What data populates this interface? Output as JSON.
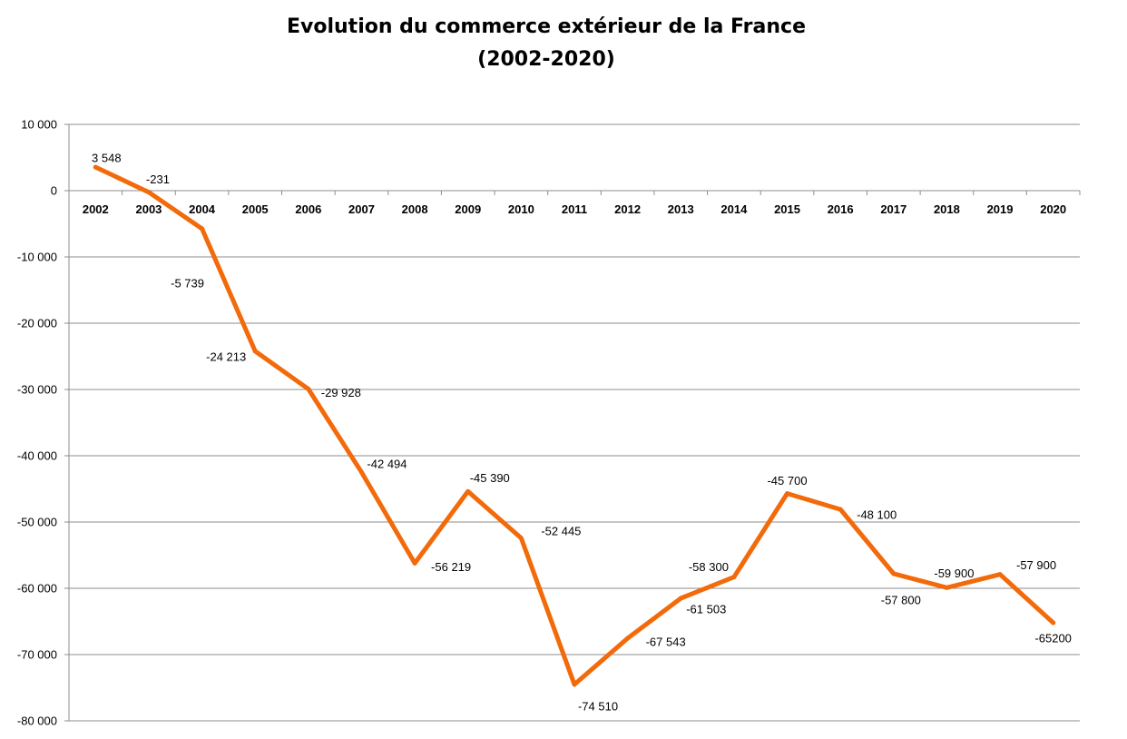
{
  "chart_data": {
    "type": "line",
    "title_line1": "Evolution du commerce extérieur de la France",
    "title_line2": "(2002-2020)",
    "xlabel": "",
    "ylabel": "",
    "categories": [
      "2002",
      "2003",
      "2004",
      "2005",
      "2006",
      "2007",
      "2008",
      "2009",
      "2010",
      "2011",
      "2012",
      "2013",
      "2014",
      "2015",
      "2016",
      "2017",
      "2018",
      "2019",
      "2020"
    ],
    "series": [
      {
        "values": [
          3548,
          -231,
          -5739,
          -24213,
          -29928,
          -42494,
          -56219,
          -45390,
          -52445,
          -74510,
          -67543,
          -61503,
          -58300,
          -45700,
          -48100,
          -57800,
          -59900,
          -57900,
          -65200
        ],
        "labels": [
          "3 548",
          "-231",
          "-5 739",
          "-24 213",
          "-29 928",
          "-42 494",
          "-56 219",
          "-45 390",
          "-52 445",
          "-74 510",
          "-67 543",
          "-61 503",
          "-58 300",
          "-45 700",
          "-48 100",
          "-57 800",
          "-59 900",
          "-57 900",
          "-65200"
        ],
        "color": "#F26A0A"
      }
    ],
    "ylim": [
      -80000,
      10000
    ],
    "yticks": [
      10000,
      0,
      -10000,
      -20000,
      -30000,
      -40000,
      -50000,
      -60000,
      -70000,
      -80000
    ],
    "ytick_labels": [
      "10 000",
      "0",
      "-10 000",
      "-20 000",
      "-30 000",
      "-40 000",
      "-50 000",
      "-60 000",
      "-70 000",
      "-80 000"
    ],
    "grid": true,
    "legend": "none"
  }
}
